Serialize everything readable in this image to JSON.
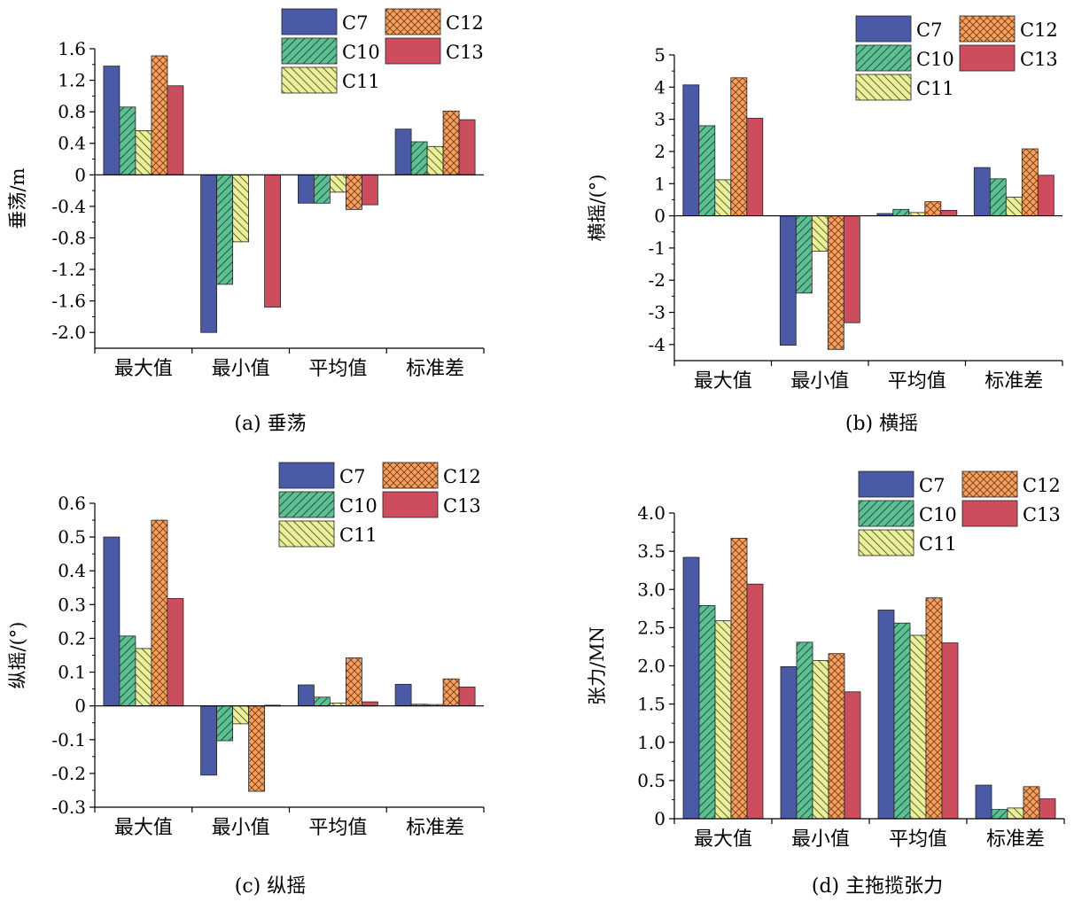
{
  "series_styles": {
    "C7": {
      "fill": "#4a5aa6",
      "pattern": "solid"
    },
    "C10": {
      "fill": "#5fbf94",
      "pattern": "hatch-fwd"
    },
    "C11": {
      "fill": "#e9ef9c",
      "pattern": "hatch-back"
    },
    "C12": {
      "fill": "#f3a061",
      "pattern": "crosshatch"
    },
    "C13": {
      "fill": "#cc4d5d",
      "pattern": "solid"
    }
  },
  "chart_data": [
    {
      "type": "bar",
      "caption": "(a) 垂荡",
      "ylabel": "垂荡/m",
      "categories": [
        "最大值",
        "最小值",
        "平均值",
        "标准差"
      ],
      "ylim": [
        -2.2,
        1.6
      ],
      "yticks": [
        -2.0,
        -1.6,
        -1.2,
        -0.8,
        -0.4,
        0,
        0.4,
        0.8,
        1.2,
        1.6
      ],
      "ytick_labels": [
        "-2.0",
        "-1.6",
        "-1.2",
        "-0.8",
        "-0.4",
        "0",
        "0.4",
        "0.8",
        "1.2",
        "1.6"
      ],
      "series": [
        {
          "name": "C7",
          "values": [
            1.38,
            -2.0,
            -0.36,
            0.58
          ]
        },
        {
          "name": "C10",
          "values": [
            0.86,
            -1.39,
            -0.36,
            0.42
          ]
        },
        {
          "name": "C11",
          "values": [
            0.56,
            -0.85,
            -0.22,
            0.36
          ]
        },
        {
          "name": "C12",
          "values": [
            1.51,
            0,
            -0.44,
            0.81
          ]
        },
        {
          "name": "C13",
          "values": [
            1.13,
            -1.68,
            -0.38,
            0.7
          ]
        }
      ],
      "legend": "top-right"
    },
    {
      "type": "bar",
      "caption": "(b) 横摇",
      "ylabel": "横摇/(°)",
      "categories": [
        "最大值",
        "最小值",
        "平均值",
        "标准差"
      ],
      "ylim": [
        -4.5,
        5
      ],
      "yticks": [
        -4,
        -3,
        -2,
        -1,
        0,
        1,
        2,
        3,
        4,
        5
      ],
      "ytick_labels": [
        "-4",
        "-3",
        "-2",
        "-1",
        "0",
        "1",
        "2",
        "3",
        "4",
        "5"
      ],
      "series": [
        {
          "name": "C7",
          "values": [
            4.07,
            -4.02,
            0.07,
            1.5
          ]
        },
        {
          "name": "C10",
          "values": [
            2.8,
            -2.4,
            0.2,
            1.15
          ]
        },
        {
          "name": "C11",
          "values": [
            1.12,
            -1.1,
            0.1,
            0.58
          ]
        },
        {
          "name": "C12",
          "values": [
            4.29,
            -4.15,
            0.44,
            2.08
          ]
        },
        {
          "name": "C13",
          "values": [
            3.03,
            -3.32,
            0.17,
            1.26
          ]
        }
      ],
      "legend": "top-right"
    },
    {
      "type": "bar",
      "caption": "(c) 纵摇",
      "ylabel": "纵摇/(°)",
      "categories": [
        "最大值",
        "最小值",
        "平均值",
        "标准差"
      ],
      "ylim": [
        -0.3,
        0.6
      ],
      "yticks": [
        -0.3,
        -0.2,
        -0.1,
        0,
        0.1,
        0.2,
        0.3,
        0.4,
        0.5,
        0.6
      ],
      "ytick_labels": [
        "-0.3",
        "-0.2",
        "-0.1",
        "0",
        "0.1",
        "0.2",
        "0.3",
        "0.4",
        "0.5",
        "0.6"
      ],
      "series": [
        {
          "name": "C7",
          "values": [
            0.5,
            -0.205,
            0.062,
            0.064
          ]
        },
        {
          "name": "C10",
          "values": [
            0.207,
            -0.103,
            0.026,
            0.005
          ]
        },
        {
          "name": "C11",
          "values": [
            0.17,
            -0.053,
            0.008,
            0.004
          ]
        },
        {
          "name": "C12",
          "values": [
            0.55,
            -0.253,
            0.142,
            0.08
          ]
        },
        {
          "name": "C13",
          "values": [
            0.318,
            0.002,
            0.012,
            0.056
          ]
        }
      ],
      "legend": "top-right"
    },
    {
      "type": "bar",
      "caption": "(d) 主拖揽张力",
      "ylabel": "张力/MN",
      "categories": [
        "最大值",
        "最小值",
        "平均值",
        "标准差"
      ],
      "ylim": [
        0,
        4.0
      ],
      "yticks": [
        0,
        0.5,
        1.0,
        1.5,
        2.0,
        2.5,
        3.0,
        3.5,
        4.0
      ],
      "ytick_labels": [
        "0",
        "0.5",
        "1.0",
        "1.5",
        "2.0",
        "2.5",
        "3.0",
        "3.5",
        "4.0"
      ],
      "series": [
        {
          "name": "C7",
          "values": [
            3.42,
            1.99,
            2.73,
            0.44
          ]
        },
        {
          "name": "C10",
          "values": [
            2.79,
            2.31,
            2.56,
            0.12
          ]
        },
        {
          "name": "C11",
          "values": [
            2.59,
            2.07,
            2.4,
            0.14
          ]
        },
        {
          "name": "C12",
          "values": [
            3.67,
            2.16,
            2.89,
            0.42
          ]
        },
        {
          "name": "C13",
          "values": [
            3.07,
            1.66,
            2.3,
            0.26
          ]
        }
      ],
      "legend": "top-right"
    }
  ]
}
